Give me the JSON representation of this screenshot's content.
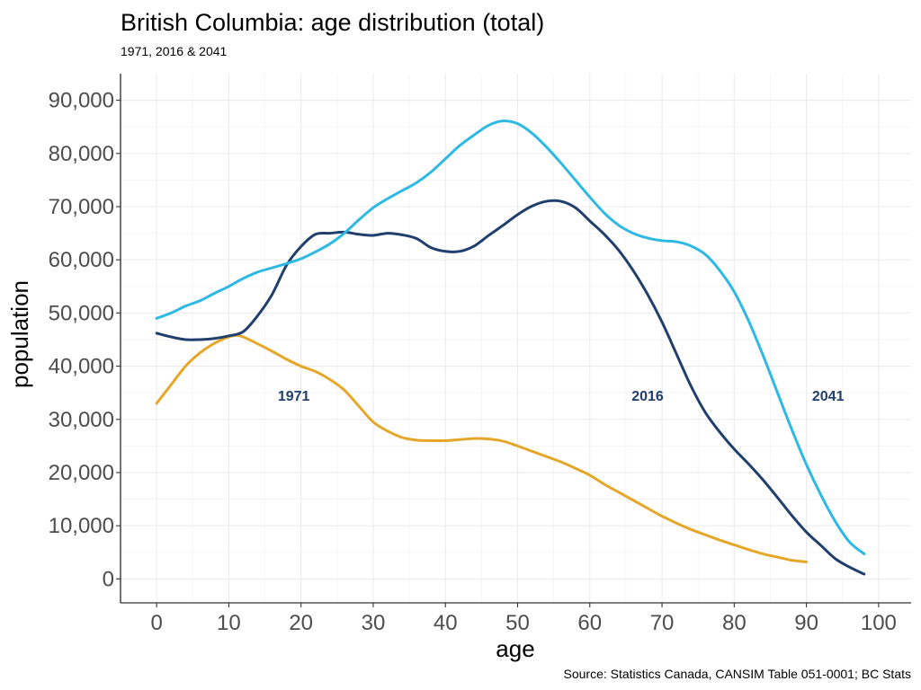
{
  "chart_data": {
    "type": "line",
    "title": "British Columbia: age distribution (total)",
    "subtitle": "1971, 2016 & 2041",
    "xlabel": "age",
    "ylabel": "population",
    "caption": "Source: Statistics Canada, CANSIM Table 051-0001; BC Stats",
    "xlim": [
      -5,
      104.5
    ],
    "ylim": [
      -4500,
      95000
    ],
    "x_ticks": [
      0,
      10,
      20,
      30,
      40,
      50,
      60,
      70,
      80,
      90,
      100
    ],
    "x_tick_labels": [
      "0",
      "10",
      "20",
      "30",
      "40",
      "50",
      "60",
      "70",
      "80",
      "90",
      "100"
    ],
    "y_ticks": [
      0,
      10000,
      20000,
      30000,
      40000,
      50000,
      60000,
      70000,
      80000,
      90000
    ],
    "y_tick_labels": [
      "0",
      "10,000",
      "20,000",
      "30,000",
      "40,000",
      "50,000",
      "60,000",
      "70,000",
      "80,000",
      "90,000"
    ],
    "grid": true,
    "legend": "none (direct labels)",
    "series": [
      {
        "name": "1971",
        "color": "#E5A729",
        "label_x": 19,
        "label_y": 34500,
        "label_color": "#1F3F6E",
        "points": [
          [
            0,
            33000
          ],
          [
            2,
            36500
          ],
          [
            4,
            40000
          ],
          [
            6,
            42500
          ],
          [
            8,
            44300
          ],
          [
            10,
            45500
          ],
          [
            11,
            45800
          ],
          [
            12,
            45500
          ],
          [
            14,
            44200
          ],
          [
            16,
            42800
          ],
          [
            18,
            41300
          ],
          [
            20,
            40000
          ],
          [
            22,
            39000
          ],
          [
            24,
            37500
          ],
          [
            26,
            35500
          ],
          [
            28,
            32500
          ],
          [
            30,
            29500
          ],
          [
            32,
            27800
          ],
          [
            34,
            26600
          ],
          [
            36,
            26100
          ],
          [
            38,
            26000
          ],
          [
            40,
            26000
          ],
          [
            42,
            26200
          ],
          [
            44,
            26400
          ],
          [
            46,
            26300
          ],
          [
            48,
            25900
          ],
          [
            50,
            25000
          ],
          [
            52,
            24000
          ],
          [
            54,
            23000
          ],
          [
            56,
            22000
          ],
          [
            58,
            20800
          ],
          [
            60,
            19500
          ],
          [
            62,
            17800
          ],
          [
            64,
            16300
          ],
          [
            66,
            14800
          ],
          [
            68,
            13300
          ],
          [
            70,
            11800
          ],
          [
            72,
            10500
          ],
          [
            74,
            9300
          ],
          [
            76,
            8300
          ],
          [
            78,
            7300
          ],
          [
            80,
            6400
          ],
          [
            82,
            5500
          ],
          [
            84,
            4700
          ],
          [
            86,
            4100
          ],
          [
            88,
            3500
          ],
          [
            90,
            3200
          ]
        ]
      },
      {
        "name": "2016",
        "color": "#203F6C",
        "label_x": 68,
        "label_y": 34500,
        "label_color": "#1F3F6E",
        "points": [
          [
            0,
            46200
          ],
          [
            2,
            45500
          ],
          [
            4,
            45000
          ],
          [
            6,
            45000
          ],
          [
            8,
            45200
          ],
          [
            10,
            45700
          ],
          [
            12,
            46500
          ],
          [
            14,
            49500
          ],
          [
            16,
            53500
          ],
          [
            18,
            59000
          ],
          [
            20,
            62500
          ],
          [
            22,
            64800
          ],
          [
            24,
            65000
          ],
          [
            26,
            65200
          ],
          [
            28,
            64800
          ],
          [
            30,
            64600
          ],
          [
            32,
            65000
          ],
          [
            34,
            64700
          ],
          [
            36,
            64000
          ],
          [
            38,
            62300
          ],
          [
            40,
            61600
          ],
          [
            42,
            61600
          ],
          [
            44,
            62600
          ],
          [
            46,
            64600
          ],
          [
            48,
            66500
          ],
          [
            50,
            68500
          ],
          [
            52,
            70100
          ],
          [
            54,
            71000
          ],
          [
            56,
            71000
          ],
          [
            58,
            69800
          ],
          [
            60,
            67300
          ],
          [
            62,
            64800
          ],
          [
            64,
            61800
          ],
          [
            66,
            58000
          ],
          [
            68,
            53500
          ],
          [
            70,
            48300
          ],
          [
            72,
            42300
          ],
          [
            74,
            36300
          ],
          [
            76,
            31300
          ],
          [
            78,
            27600
          ],
          [
            80,
            24400
          ],
          [
            82,
            21600
          ],
          [
            84,
            18600
          ],
          [
            86,
            15300
          ],
          [
            88,
            11900
          ],
          [
            90,
            8800
          ],
          [
            92,
            6300
          ],
          [
            94,
            3800
          ],
          [
            96,
            2200
          ],
          [
            98,
            900
          ]
        ]
      },
      {
        "name": "2041",
        "color": "#2DB9E4",
        "label_x": 93,
        "label_y": 34500,
        "label_color": "#1F3F6E",
        "points": [
          [
            0,
            49000
          ],
          [
            2,
            50000
          ],
          [
            4,
            51300
          ],
          [
            6,
            52300
          ],
          [
            8,
            53700
          ],
          [
            10,
            55000
          ],
          [
            12,
            56500
          ],
          [
            14,
            57700
          ],
          [
            16,
            58500
          ],
          [
            18,
            59300
          ],
          [
            20,
            60200
          ],
          [
            22,
            61500
          ],
          [
            24,
            63000
          ],
          [
            26,
            65000
          ],
          [
            28,
            67500
          ],
          [
            30,
            69800
          ],
          [
            32,
            71500
          ],
          [
            34,
            73000
          ],
          [
            36,
            74500
          ],
          [
            38,
            76500
          ],
          [
            40,
            79000
          ],
          [
            42,
            81500
          ],
          [
            44,
            83500
          ],
          [
            46,
            85300
          ],
          [
            48,
            86100
          ],
          [
            50,
            85600
          ],
          [
            52,
            83800
          ],
          [
            54,
            81200
          ],
          [
            56,
            78200
          ],
          [
            58,
            75000
          ],
          [
            60,
            71800
          ],
          [
            62,
            68800
          ],
          [
            64,
            66500
          ],
          [
            66,
            65000
          ],
          [
            68,
            64100
          ],
          [
            70,
            63600
          ],
          [
            72,
            63400
          ],
          [
            74,
            62600
          ],
          [
            76,
            61000
          ],
          [
            78,
            58000
          ],
          [
            80,
            54000
          ],
          [
            82,
            48500
          ],
          [
            84,
            42000
          ],
          [
            86,
            35000
          ],
          [
            88,
            28000
          ],
          [
            90,
            21500
          ],
          [
            92,
            15800
          ],
          [
            94,
            10800
          ],
          [
            96,
            6900
          ],
          [
            98,
            4700
          ]
        ]
      }
    ]
  }
}
